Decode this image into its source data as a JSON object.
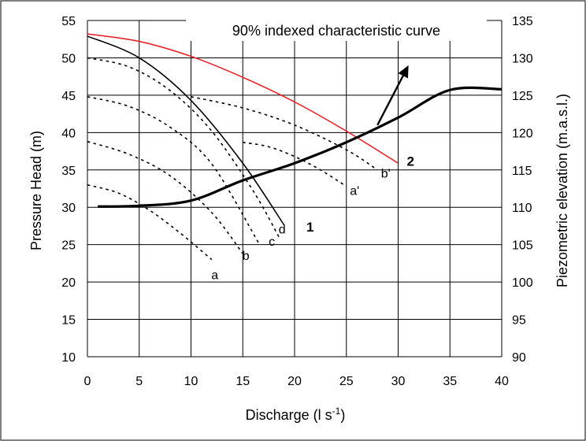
{
  "chart_data": {
    "type": "line",
    "title": "90% indexed characteristic curve",
    "xlabel_main": "Discharge (l s",
    "xlabel_sup": "-1",
    "xlabel_end": ")",
    "ylabel_left": "Pressure Head (m)",
    "ylabel_right": "Piezometric elevation (m.a.s.l.)",
    "xlim": [
      0,
      40
    ],
    "ylim_left": [
      10,
      55
    ],
    "ylim_right": [
      90,
      135
    ],
    "x_ticks": [
      0,
      5,
      10,
      15,
      20,
      25,
      30,
      35,
      40
    ],
    "y_ticks_left": [
      10,
      15,
      20,
      25,
      30,
      35,
      40,
      45,
      50,
      55
    ],
    "y_ticks_right": [
      90,
      95,
      100,
      105,
      110,
      115,
      120,
      125,
      130,
      135
    ],
    "grid": true,
    "series": [
      {
        "name": "90% indexed characteristic curve",
        "axis": "left",
        "color": "#e8262a",
        "style": "solid",
        "width": 1.6,
        "x": [
          0,
          5,
          10,
          15,
          20,
          25,
          30
        ],
        "y": [
          53.2,
          52.2,
          50.2,
          47.4,
          44.1,
          40.2,
          35.9
        ]
      },
      {
        "name": "1",
        "axis": "left",
        "color": "#000000",
        "style": "solid",
        "width": 1.6,
        "x": [
          0,
          5,
          10,
          15,
          19
        ],
        "y": [
          52.9,
          50.0,
          44.3,
          35.9,
          27.6
        ]
      },
      {
        "name": "a",
        "axis": "left",
        "color": "#000000",
        "style": "dotted",
        "width": 1.6,
        "x": [
          0,
          3,
          6,
          9,
          12
        ],
        "y": [
          33.0,
          31.9,
          29.6,
          26.5,
          23.0
        ]
      },
      {
        "name": "b",
        "axis": "left",
        "color": "#000000",
        "style": "dotted",
        "width": 1.6,
        "x": [
          0,
          4,
          8,
          12,
          15
        ],
        "y": [
          38.8,
          37.1,
          34.2,
          29.3,
          23.8
        ]
      },
      {
        "name": "c",
        "axis": "left",
        "color": "#000000",
        "style": "dotted",
        "width": 1.6,
        "x": [
          0,
          4,
          8,
          12,
          16.5
        ],
        "y": [
          44.8,
          43.5,
          40.7,
          35.8,
          25.3
        ]
      },
      {
        "name": "d",
        "axis": "left",
        "color": "#000000",
        "style": "dotted",
        "width": 1.6,
        "x": [
          0,
          4,
          8,
          12,
          16,
          18.5
        ],
        "y": [
          50.0,
          48.8,
          45.6,
          40.2,
          32.2,
          26.0
        ]
      },
      {
        "name": "a'",
        "axis": "left",
        "color": "#000000",
        "style": "dotted",
        "width": 1.6,
        "x": [
          15,
          17.5,
          20,
          22.5,
          25
        ],
        "y": [
          38.7,
          38.1,
          36.8,
          35.0,
          32.8
        ]
      },
      {
        "name": "b'",
        "axis": "left",
        "color": "#000000",
        "style": "dotted",
        "width": 1.6,
        "x": [
          10,
          15,
          20,
          25,
          28
        ],
        "y": [
          44.8,
          43.3,
          41.0,
          37.7,
          35.0
        ]
      },
      {
        "name": "2",
        "axis": "right",
        "color": "#000000",
        "style": "solid",
        "width": 3.2,
        "x": [
          1,
          5,
          10,
          15,
          20,
          25,
          30,
          35,
          40
        ],
        "y": [
          110.1,
          110.2,
          110.9,
          113.6,
          115.9,
          118.7,
          122.0,
          125.7,
          125.8
        ]
      }
    ],
    "annotations": [
      {
        "text": "a",
        "x": 12.3,
        "y": 21.0,
        "bold": false
      },
      {
        "text": "b",
        "x": 15.3,
        "y": 23.6,
        "bold": false
      },
      {
        "text": "c",
        "x": 17.8,
        "y": 25.5,
        "bold": false
      },
      {
        "text": "d",
        "x": 18.8,
        "y": 27.1,
        "bold": false
      },
      {
        "text": "1",
        "x": 21.5,
        "y": 27.4,
        "bold": true
      },
      {
        "text": "a'",
        "x": 25.8,
        "y": 32.3,
        "bold": false
      },
      {
        "text": "b'",
        "x": 28.8,
        "y": 34.6,
        "bold": false
      },
      {
        "text": "2",
        "x": 31.2,
        "y": 36.2,
        "bold": true
      }
    ],
    "arrow": {
      "from": [
        28,
        41.0
      ],
      "to": [
        31,
        49.0
      ]
    }
  }
}
